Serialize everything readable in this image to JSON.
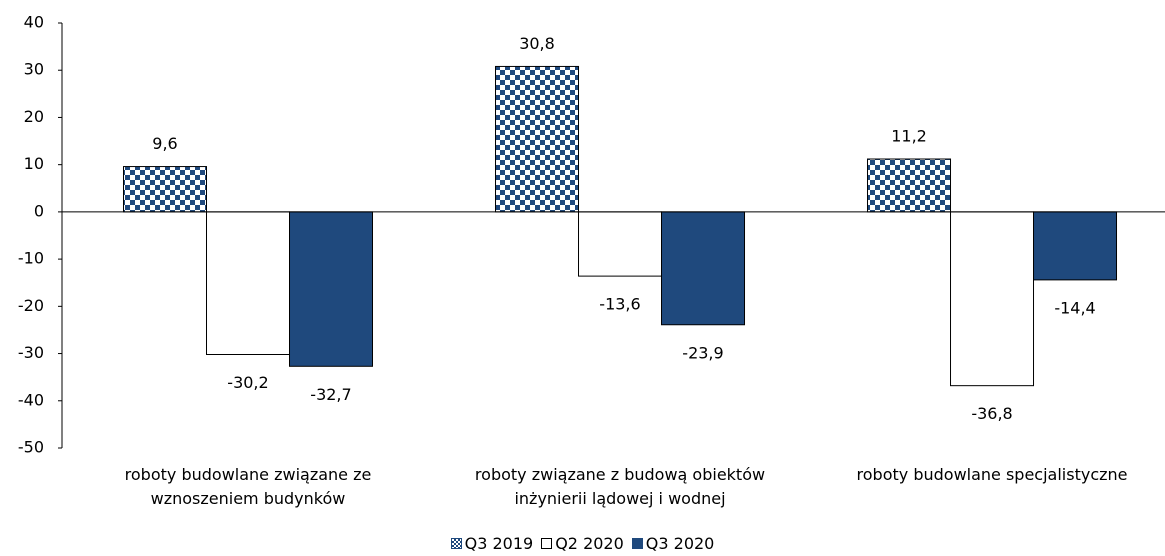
{
  "chart_data": {
    "type": "bar",
    "categories": [
      "roboty budowlane związane ze wznoszeniem budynków",
      "roboty związane z budową obiektów inżynierii lądowej i wodnej",
      "roboty budowlane specjalistyczne"
    ],
    "series": [
      {
        "name": "Q3 2019",
        "color": "#1f497d",
        "pattern": "checkerboard",
        "values": [
          9.6,
          30.8,
          11.2
        ],
        "value_labels": [
          "9,6",
          "30,8",
          "11,2"
        ]
      },
      {
        "name": "Q2 2020",
        "color": "#ffffff",
        "values": [
          -30.2,
          -13.6,
          -36.8
        ],
        "value_labels": [
          "-30,2",
          "-13,6",
          "-36,8"
        ]
      },
      {
        "name": "Q3 2020",
        "color": "#1f497d",
        "values": [
          -32.7,
          -23.9,
          -14.4
        ],
        "value_labels": [
          "-32,7",
          "-23,9",
          "-14,4"
        ]
      }
    ],
    "ylim": [
      -50,
      40
    ],
    "yticks": [
      -50,
      -40,
      -30,
      -20,
      -10,
      0,
      10,
      20,
      30,
      40
    ],
    "legend": "bottom"
  }
}
